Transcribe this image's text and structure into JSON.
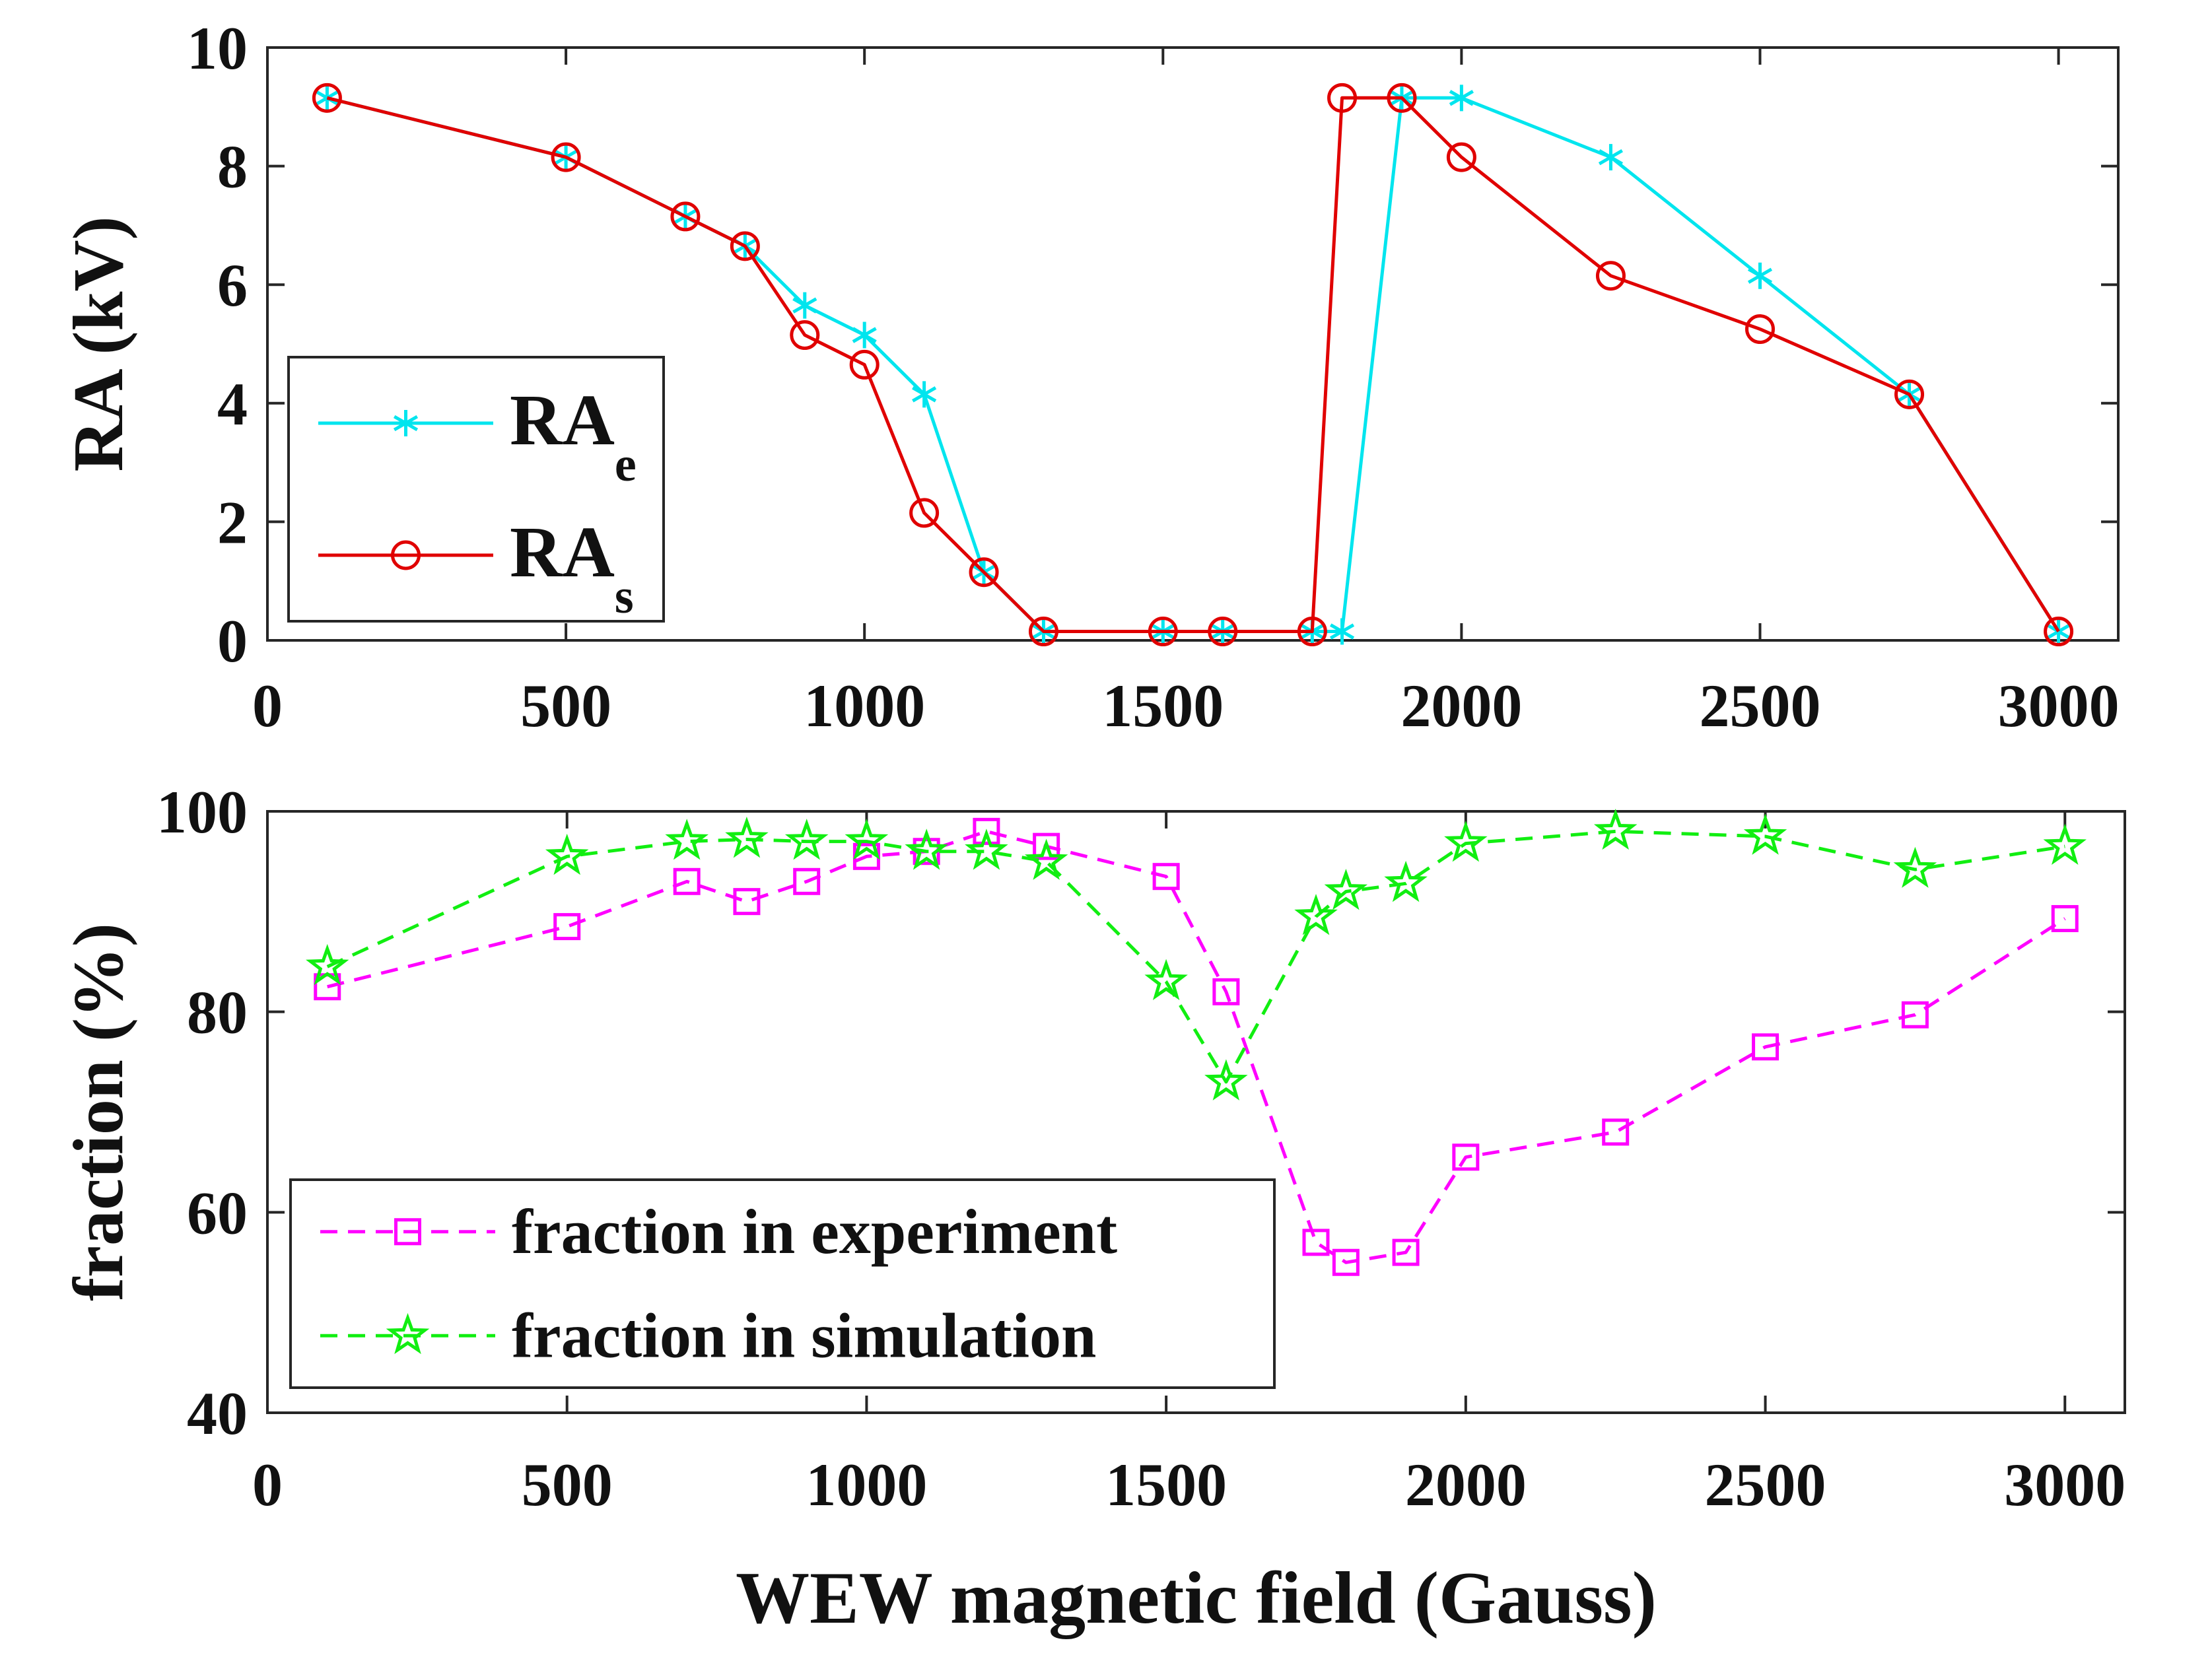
{
  "chart_data": [
    {
      "type": "line",
      "ylabel": "RA (kV)",
      "xlim": [
        0,
        3100
      ],
      "ylim": [
        0,
        10
      ],
      "xticks": [
        "0",
        "500",
        "1000",
        "1500",
        "2000",
        "2500",
        "3000"
      ],
      "yticks": [
        "0",
        "2",
        "4",
        "6",
        "8",
        "10"
      ],
      "grid": false,
      "legend_placement": "lower-left",
      "series": [
        {
          "name_base": "RA",
          "name_sub": "e",
          "color": "#00e5ee",
          "marker": "asterisk",
          "dash": "solid",
          "x": [
            100,
            500,
            700,
            800,
            900,
            1000,
            1100,
            1200,
            1300,
            1500,
            1600,
            1750,
            1800,
            1900,
            2000,
            2250,
            2500,
            2750,
            3000
          ],
          "y": [
            9.15,
            8.15,
            7.15,
            6.65,
            5.65,
            5.15,
            4.15,
            1.15,
            0.15,
            0.15,
            0.15,
            0.15,
            0.15,
            9.15,
            9.15,
            8.15,
            6.15,
            4.15,
            0.15
          ]
        },
        {
          "name_base": "RA",
          "name_sub": "s",
          "color": "#e00000",
          "marker": "circle",
          "dash": "solid",
          "x": [
            100,
            500,
            700,
            800,
            900,
            1000,
            1100,
            1200,
            1300,
            1500,
            1600,
            1750,
            1800,
            1900,
            2000,
            2250,
            2500,
            2750,
            3000
          ],
          "y": [
            9.15,
            8.15,
            7.15,
            6.65,
            5.15,
            4.65,
            2.15,
            1.15,
            0.15,
            0.15,
            0.15,
            0.15,
            9.15,
            9.15,
            8.15,
            6.15,
            5.25,
            4.15,
            0.15
          ]
        }
      ]
    },
    {
      "type": "line",
      "xlabel": "WEW magnetic field (Gauss)",
      "ylabel": "fraction (%)",
      "xlim": [
        0,
        3100
      ],
      "ylim": [
        40,
        100
      ],
      "xticks": [
        "0",
        "500",
        "1000",
        "1500",
        "2000",
        "2500",
        "3000"
      ],
      "yticks": [
        "40",
        "60",
        "80",
        "100"
      ],
      "grid": false,
      "legend_placement": "lower-left",
      "series": [
        {
          "name": "fraction in experiment",
          "color": "#ff00ff",
          "marker": "square",
          "dash": "dashed",
          "x": [
            100,
            500,
            700,
            800,
            900,
            1000,
            1100,
            1200,
            1300,
            1500,
            1600,
            1750,
            1800,
            1900,
            2000,
            2250,
            2500,
            2750,
            3000
          ],
          "y": [
            82.5,
            88.5,
            93,
            91,
            93,
            95.5,
            96,
            98,
            96.5,
            93.5,
            82,
            57,
            55,
            56,
            65.5,
            68,
            76.5,
            79.7,
            89.3
          ]
        },
        {
          "name": "fraction in simulation",
          "color": "#11ee11",
          "marker": "star",
          "dash": "dashed",
          "x": [
            100,
            500,
            700,
            800,
            900,
            1000,
            1100,
            1200,
            1300,
            1500,
            1600,
            1750,
            1800,
            1900,
            2000,
            2250,
            2500,
            2750,
            3000
          ],
          "y": [
            84.5,
            95.5,
            97,
            97.2,
            97,
            97,
            96,
            96,
            95,
            83,
            73,
            89.5,
            92,
            92.8,
            96.8,
            98,
            97.5,
            94.2,
            96.5
          ]
        }
      ]
    }
  ]
}
